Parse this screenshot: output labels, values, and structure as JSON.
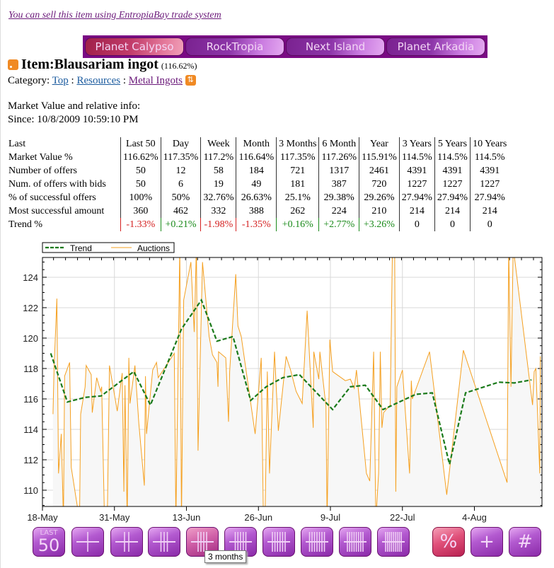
{
  "sell_link": "You can sell this item using EntropiaBay trade system",
  "planets": [
    "Planet Calypso",
    "RockTropia",
    "Next Island",
    "Planet Arkadia"
  ],
  "item": {
    "title": "Item:Blausariam ingot",
    "percent": "(116.62%)"
  },
  "category": {
    "label": "Category:",
    "items": [
      "Top",
      "Resources",
      "Metal Ingots"
    ],
    "sep": ":"
  },
  "market_label": "Market Value and relative info:",
  "since": "Since: 10/8/2009 10:59:10 PM",
  "table": {
    "headers": [
      "Last",
      "Last 50",
      "Day",
      "Week",
      "Month",
      "3 Months",
      "6 Month",
      "Year",
      "3 Years",
      "5 Years",
      "10 Years"
    ],
    "rows": [
      [
        "Market Value %",
        "116.62%",
        "117.35%",
        "117.2%",
        "116.64%",
        "117.35%",
        "117.26%",
        "115.91%",
        "114.5%",
        "114.5%",
        "114.5%"
      ],
      [
        "Number of offers",
        "50",
        "12",
        "58",
        "184",
        "721",
        "1317",
        "2461",
        "4391",
        "4391",
        "4391"
      ],
      [
        "Num. of offers with bids",
        "50",
        "6",
        "19",
        "49",
        "181",
        "387",
        "720",
        "1227",
        "1227",
        "1227"
      ],
      [
        "% of successful offers",
        "100%",
        "50%",
        "32.76%",
        "26.63%",
        "25.1%",
        "29.38%",
        "29.26%",
        "27.94%",
        "27.94%",
        "27.94%"
      ],
      [
        "Most successful amount",
        "360",
        "462",
        "332",
        "388",
        "262",
        "224",
        "210",
        "214",
        "214",
        "214"
      ],
      [
        "Trend %",
        "-1.33%",
        "+0.21%",
        "-1.98%",
        "-1.35%",
        "+0.16%",
        "+2.77%",
        "+3.26%",
        "0",
        "0",
        "0"
      ]
    ]
  },
  "colors": {
    "trend": "#1a7a1a",
    "auctions": "#f5a020",
    "negative": "#d42020",
    "positive": "#1a8a1a",
    "accent": "#7a0a84"
  },
  "chart_data": {
    "type": "line",
    "x_unit": "days since 18-May",
    "legend": [
      "Trend",
      "Auctions"
    ],
    "legend_position": "top-left",
    "xlim": [
      0,
      90.2
    ],
    "ylim": [
      108.93,
      125.3
    ],
    "x_ticks": [
      {
        "day": 0,
        "label": "18-May"
      },
      {
        "day": 13,
        "label": "31-May"
      },
      {
        "day": 26,
        "label": "13-Jun"
      },
      {
        "day": 39,
        "label": "26-Jun"
      },
      {
        "day": 52,
        "label": "9-Jul"
      },
      {
        "day": 65,
        "label": "22-Jul"
      },
      {
        "day": 78,
        "label": "4-Aug"
      }
    ],
    "y_ticks": [
      110,
      112,
      114,
      116,
      118,
      120,
      122,
      124
    ],
    "grid": true,
    "series": [
      {
        "name": "Trend",
        "points": [
          [
            1.5,
            119.0
          ],
          [
            4.5,
            115.8
          ],
          [
            7.7,
            116.1
          ],
          [
            10.6,
            116.2
          ],
          [
            16.5,
            117.8
          ],
          [
            19.5,
            115.6
          ],
          [
            25.1,
            120.6
          ],
          [
            28.7,
            122.5
          ],
          [
            31.5,
            119.8
          ],
          [
            34.4,
            120.1
          ],
          [
            37.6,
            115.9
          ],
          [
            40.4,
            116.8
          ],
          [
            43.4,
            117.4
          ],
          [
            46.4,
            117.6
          ],
          [
            52.4,
            115.3
          ],
          [
            55.6,
            116.8
          ],
          [
            58.3,
            116.9
          ],
          [
            61.5,
            115.3
          ],
          [
            67.4,
            116.3
          ],
          [
            70.4,
            116.4
          ],
          [
            73.5,
            111.7
          ],
          [
            76.4,
            116.4
          ],
          [
            82.4,
            117.1
          ],
          [
            85.2,
            117.05
          ],
          [
            88.3,
            117.25
          ]
        ]
      },
      {
        "name": "Auctions",
        "points": [
          [
            1.9,
            115
          ],
          [
            2.1,
            118
          ],
          [
            2.6,
            122.6
          ],
          [
            2.9,
            111.1
          ],
          [
            3.4,
            113.7
          ],
          [
            3.8,
            108
          ],
          [
            4.0,
            117.5
          ],
          [
            4.9,
            118.4
          ],
          [
            5.2,
            111.5
          ],
          [
            6.7,
            108
          ],
          [
            6.9,
            115
          ],
          [
            7.7,
            116.8
          ],
          [
            7.9,
            118.2
          ],
          [
            8.8,
            117.6
          ],
          [
            9.0,
            115.1
          ],
          [
            9.8,
            117.4
          ],
          [
            10.5,
            116.5
          ],
          [
            10.7,
            116.8
          ],
          [
            11.2,
            108
          ],
          [
            11.7,
            108
          ],
          [
            12.1,
            118.2
          ],
          [
            13.5,
            115.2
          ],
          [
            14.4,
            117.7
          ],
          [
            14.7,
            109.9
          ],
          [
            14.9,
            116.9
          ],
          [
            15.3,
            108
          ],
          [
            15.6,
            118.7
          ],
          [
            15.8,
            115.7
          ],
          [
            16.7,
            118.2
          ],
          [
            17.4,
            114.4
          ],
          [
            18.4,
            110.3
          ],
          [
            18.6,
            117.5
          ],
          [
            18.8,
            113.7
          ],
          [
            19.9,
            117.9
          ],
          [
            20.6,
            118.4
          ],
          [
            20.9,
            117.4
          ],
          [
            23.8,
            119
          ],
          [
            24.1,
            108
          ],
          [
            24.8,
            126
          ],
          [
            25.1,
            108
          ],
          [
            25.5,
            122.5
          ],
          [
            26.8,
            125
          ],
          [
            27.4,
            120.4
          ],
          [
            27.8,
            126
          ],
          [
            28.1,
            112.6
          ],
          [
            28.9,
            125
          ],
          [
            30.1,
            120.1
          ],
          [
            30.7,
            118.9
          ],
          [
            31.5,
            118.4
          ],
          [
            31.7,
            116.8
          ],
          [
            31.8,
            119.1
          ],
          [
            33.1,
            118.7
          ],
          [
            33.6,
            114.5
          ],
          [
            33.8,
            117.8
          ],
          [
            34.9,
            124.2
          ],
          [
            35.3,
            120.8
          ],
          [
            35.9,
            120.1
          ],
          [
            38.4,
            113.7
          ],
          [
            39.5,
            118.7
          ],
          [
            39.9,
            108
          ],
          [
            40.2,
            108
          ],
          [
            40.6,
            117.8
          ],
          [
            41.0,
            111.1
          ],
          [
            41.9,
            119.1
          ],
          [
            42.6,
            113.9
          ],
          [
            44.0,
            118.8
          ],
          [
            44.8,
            117.9
          ],
          [
            45.8,
            116.5
          ],
          [
            46.9,
            115.7
          ],
          [
            47.8,
            121.8
          ],
          [
            48.9,
            114.1
          ],
          [
            49.0,
            119.1
          ],
          [
            49.9,
            117.3
          ],
          [
            50.1,
            119.1
          ],
          [
            51.2,
            115.5
          ],
          [
            51.4,
            108
          ],
          [
            51.9,
            119.9
          ],
          [
            52.4,
            117.8
          ],
          [
            54.7,
            117.2
          ],
          [
            55.6,
            117.3
          ],
          [
            56.3,
            116.7
          ],
          [
            56.7,
            117.9
          ],
          [
            58.5,
            111.1
          ],
          [
            59.1,
            110.6
          ],
          [
            59.8,
            119.1
          ],
          [
            60.2,
            108
          ],
          [
            60.7,
            111.1
          ],
          [
            61.0,
            119.1
          ],
          [
            61.3,
            114.1
          ],
          [
            61.6,
            115.1
          ],
          [
            62.8,
            115.6
          ],
          [
            63.2,
            126
          ],
          [
            63.6,
            126
          ],
          [
            63.8,
            109.9
          ],
          [
            64.0,
            116.8
          ],
          [
            65.0,
            117.9
          ],
          [
            66.3,
            111.1
          ],
          [
            66.6,
            117.2
          ],
          [
            66.8,
            116
          ],
          [
            69.9,
            119.1
          ],
          [
            73.0,
            109.7
          ],
          [
            76.0,
            119.2
          ],
          [
            83.9,
            110.5
          ],
          [
            84.2,
            126
          ],
          [
            84.6,
            116.8
          ],
          [
            85.0,
            126
          ],
          [
            88.5,
            115.6
          ],
          [
            88.8,
            117.8
          ],
          [
            89.1,
            118
          ],
          [
            89.8,
            111.1
          ],
          [
            89.9,
            118.8
          ]
        ]
      }
    ]
  },
  "range_buttons": [
    {
      "name": "last-50",
      "glyph": "LAST 50"
    },
    {
      "name": "day",
      "lines": 1
    },
    {
      "name": "week",
      "lines": 2
    },
    {
      "name": "month",
      "lines": 3
    },
    {
      "name": "3-months",
      "lines": 4
    },
    {
      "name": "6-months",
      "lines": 5
    },
    {
      "name": "year",
      "lines": 6
    },
    {
      "name": "3-years",
      "lines": 7
    },
    {
      "name": "5-years",
      "lines": 8
    },
    {
      "name": "10-years",
      "lines": 9
    }
  ],
  "mode_buttons": [
    {
      "name": "percent",
      "glyph": "%"
    },
    {
      "name": "plus",
      "glyph": "+"
    },
    {
      "name": "hash",
      "glyph": "#"
    }
  ],
  "tooltip": "3 months",
  "last50_top": "LAST",
  "last50_num": "50"
}
